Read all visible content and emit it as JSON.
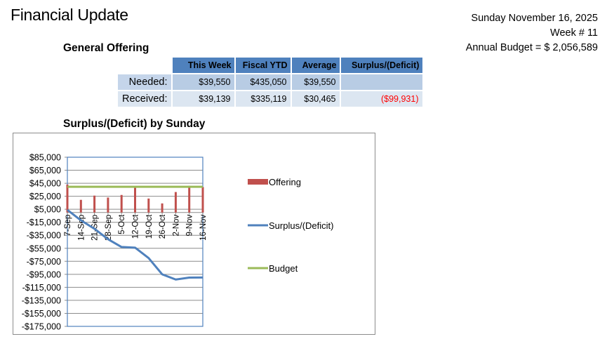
{
  "header": {
    "title": "Financial Update",
    "date": "Sunday November 16, 2025",
    "week": "Week # 11",
    "annual_budget": "Annual Budget = $ 2,056,589"
  },
  "general_offering": {
    "title": "General Offering",
    "columns": [
      "This Week",
      "Fiscal YTD",
      "Average",
      "Surplus/(Deficit)"
    ],
    "rows": [
      {
        "label": "Needed:",
        "this_week": "$39,550",
        "fiscal_ytd": "$435,050",
        "average": "$39,550",
        "surplus": ""
      },
      {
        "label": "Received:",
        "this_week": "$39,139",
        "fiscal_ytd": "$335,119",
        "average": "$30,465",
        "surplus": "($99,931)"
      }
    ]
  },
  "chart": {
    "title": "Surplus/(Deficit) by Sunday"
  },
  "colors": {
    "header_blue": "#4f81bd",
    "needed_row": "#b8cce4",
    "received_row": "#dce6f1",
    "deficit_red": "#ff0000",
    "offering_bar": "#c0504d",
    "surplus_line": "#4f81bd",
    "budget_line": "#9bbb59"
  },
  "chart_data": {
    "type": "bar",
    "title": "Surplus/(Deficit) by Sunday",
    "xlabel": "",
    "ylabel": "",
    "categories": [
      "7-Sep",
      "14-Sep",
      "21-Sep",
      "28-Sep",
      "5-Oct",
      "12-Oct",
      "19-Oct",
      "26-Oct",
      "2-Nov",
      "9-Nov",
      "16-Nov"
    ],
    "series": [
      {
        "name": "Offering",
        "type": "bar",
        "color": "#c0504d",
        "values": [
          43000,
          19500,
          26000,
          23000,
          27000,
          38000,
          21500,
          14000,
          31500,
          41000,
          39139
        ]
      },
      {
        "name": "Surplus/(Deficit)",
        "type": "line",
        "color": "#4f81bd",
        "values": [
          4000,
          -12000,
          -25000,
          -41000,
          -53000,
          -54000,
          -70000,
          -95000,
          -103000,
          -100000,
          -99931
        ]
      },
      {
        "name": "Budget",
        "type": "line",
        "color": "#9bbb59",
        "values": [
          39550,
          39550,
          39550,
          39550,
          39550,
          39550,
          39550,
          39550,
          39550,
          39550,
          39550
        ]
      }
    ],
    "ylim": [
      -175000,
      85000
    ],
    "yticks": [
      "$85,000",
      "$65,000",
      "$45,000",
      "$25,000",
      "$5,000",
      "-$15,000",
      "-$35,000",
      "-$55,000",
      "-$75,000",
      "-$95,000",
      "-$115,000",
      "-$135,000",
      "-$155,000",
      "-$175,000"
    ],
    "grid": true,
    "legend": [
      "Offering",
      "Surplus/(Deficit)",
      "Budget"
    ],
    "legend_position": "right"
  }
}
